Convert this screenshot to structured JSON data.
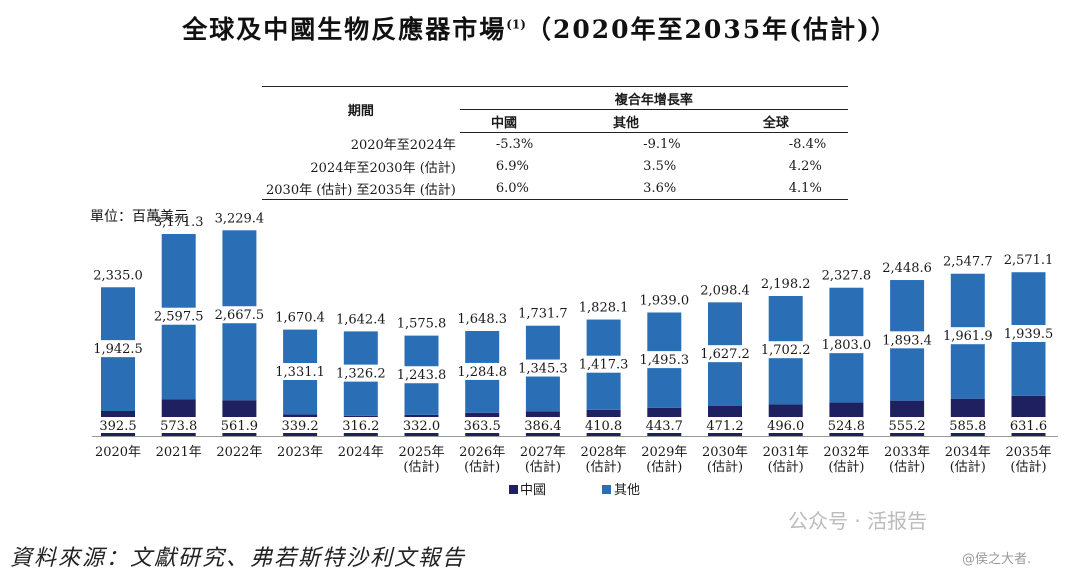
{
  "title": {
    "main": "全球及中國生物反應器市場",
    "footnote": "(1)",
    "range": "（2020年至2035年(估計)）"
  },
  "cagr_table": {
    "period_header": "期間",
    "group_header": "複合年增長率",
    "col_headers": [
      "中國",
      "其他",
      "全球"
    ],
    "rows": [
      {
        "period": "2020年至2024年",
        "values": [
          "-5.3%",
          "-9.1%",
          "-8.4%"
        ]
      },
      {
        "period": "2024年至2030年 (估計)",
        "values": [
          "6.9%",
          "3.5%",
          "4.2%"
        ]
      },
      {
        "period": "2030年 (估計) 至2035年 (估計)",
        "values": [
          "6.0%",
          "3.6%",
          "4.1%"
        ]
      }
    ]
  },
  "unit_label": "單位：百萬美元",
  "colors": {
    "china": "#1e2060",
    "other": "#2a6fb6",
    "text": "#1a1a1a"
  },
  "chart_data": {
    "type": "bar",
    "stacked": true,
    "categories": [
      "2020年",
      "2021年",
      "2022年",
      "2023年",
      "2024年",
      "2025年\n(估計)",
      "2026年\n(估計)",
      "2027年\n(估計)",
      "2028年\n(估計)",
      "2029年\n(估計)",
      "2030年\n(估計)",
      "2031年\n(估計)",
      "2032年\n(估計)",
      "2033年\n(估計)",
      "2034年\n(估計)",
      "2035年\n(估計)"
    ],
    "series": [
      {
        "name": "中國",
        "values": [
          "392.5",
          "573.8",
          "561.9",
          "339.2",
          "316.2",
          "332.0",
          "363.5",
          "386.4",
          "410.8",
          "443.7",
          "471.2",
          "496.0",
          "524.8",
          "555.2",
          "585.8",
          "631.6"
        ]
      },
      {
        "name": "其他",
        "values": [
          "1,942.5",
          "2,597.5",
          "2,667.5",
          "1,331.1",
          "1,326.2",
          "1,243.8",
          "1,284.8",
          "1,345.3",
          "1,417.3",
          "1,495.3",
          "1,627.2",
          "1,702.2",
          "1,803.0",
          "1,893.4",
          "1,961.9",
          "1,939.5"
        ]
      }
    ],
    "totals": [
      "2,335.0",
      "3,171.3",
      "3,229.4",
      "1,670.4",
      "1,642.4",
      "1,575.8",
      "1,648.3",
      "1,731.7",
      "1,828.1",
      "1,939.0",
      "2,098.4",
      "2,198.2",
      "2,327.8",
      "2,448.6",
      "2,547.7",
      "2,571.1"
    ],
    "legend": [
      "中國",
      "其他"
    ],
    "legend_position": "bottom-center",
    "ylabel": "單位：百萬美元"
  },
  "source": "資料來源：文獻研究、弗若斯特沙利文報告",
  "watermark": {
    "text": "公众号 · 活报告",
    "sub": "@侯之大者."
  }
}
